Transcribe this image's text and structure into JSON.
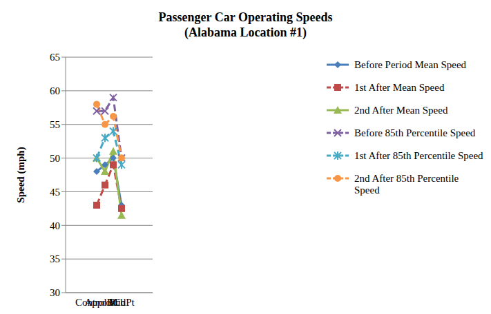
{
  "chart_data": {
    "type": "line",
    "title": "Passenger Car Operating Speeds",
    "subtitle": "(Alabama Location #1)",
    "y_label": "Speed (mph)",
    "categories": [
      "Control Pt",
      "Approach",
      "PC",
      "MidPt"
    ],
    "ylim": [
      30,
      65
    ],
    "yticks": [
      30,
      35,
      40,
      45,
      50,
      55,
      60,
      65
    ],
    "grid": true,
    "legend": "right",
    "series": [
      {
        "name": "Before Period Mean Speed",
        "color": "#4a7ebb",
        "marker": "diamond",
        "line_style": "solid",
        "values": [
          48,
          49,
          50,
          43
        ]
      },
      {
        "name": "1st After Mean Speed",
        "color": "#be4b48",
        "marker": "square",
        "line_style": "dashed",
        "values": [
          43,
          46,
          49,
          42.5
        ]
      },
      {
        "name": "2nd After Mean Speed",
        "color": "#98b954",
        "marker": "triangle",
        "line_style": "solid",
        "values": [
          50,
          48,
          51,
          41.5
        ]
      },
      {
        "name": "Before 85th Percentile Speed",
        "color": "#7d60a0",
        "marker": "x",
        "line_style": "dashed",
        "values": [
          57,
          57,
          59,
          50
        ]
      },
      {
        "name": "1st After 85th Percentile Speed",
        "color": "#46aac5",
        "marker": "star",
        "line_style": "dashed",
        "values": [
          50,
          53,
          54,
          49
        ]
      },
      {
        "name": "2nd After 85th Percentile Speed",
        "color": "#f79646",
        "marker": "circle",
        "line_style": "dashed",
        "values": [
          58,
          55,
          56.2,
          50
        ]
      }
    ]
  }
}
